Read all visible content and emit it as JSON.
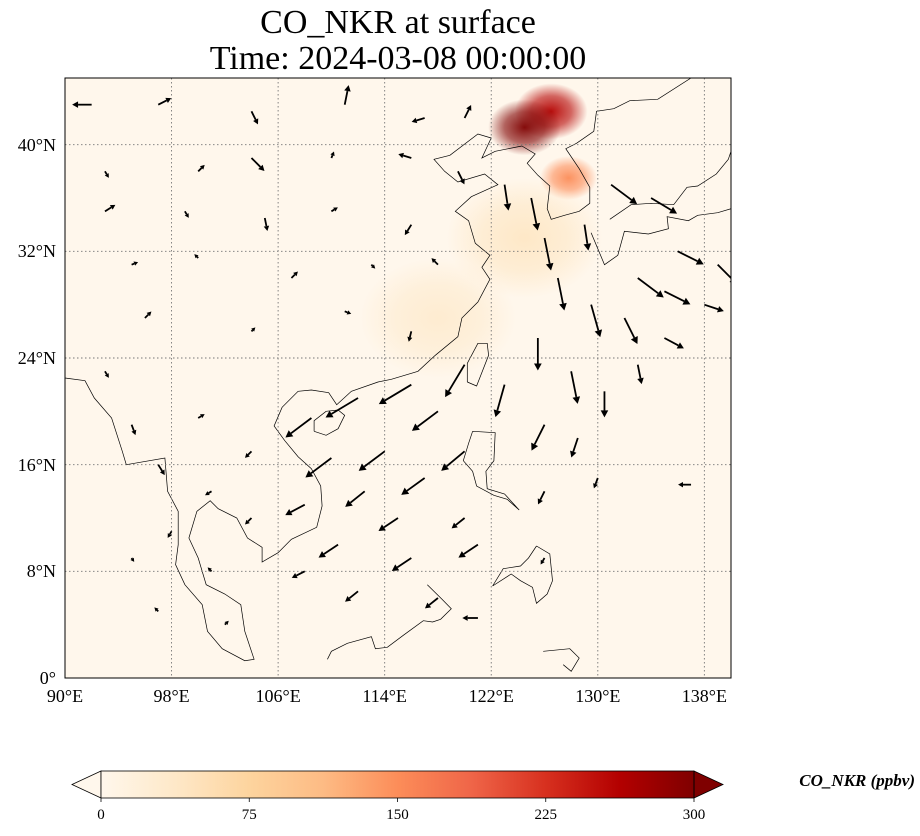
{
  "title": {
    "line1": "CO_NKR at surface",
    "line2": "Time: 2024-03-08 00:00:00"
  },
  "map": {
    "projection": "PlateCarree",
    "lon_range": [
      90,
      140
    ],
    "lat_range": [
      0,
      45
    ],
    "gridlines": "dotted",
    "lon_ticks": [
      {
        "value": 90,
        "label": "90°E"
      },
      {
        "value": 98,
        "label": "98°E"
      },
      {
        "value": 106,
        "label": "106°E"
      },
      {
        "value": 114,
        "label": "114°E"
      },
      {
        "value": 122,
        "label": "122°E"
      },
      {
        "value": 130,
        "label": "130°E"
      },
      {
        "value": 138,
        "label": "138°E"
      }
    ],
    "lat_ticks": [
      {
        "value": 0,
        "label": "0°"
      },
      {
        "value": 8,
        "label": "8°N"
      },
      {
        "value": 16,
        "label": "16°N"
      },
      {
        "value": 24,
        "label": "24°N"
      },
      {
        "value": 32,
        "label": "32°N"
      },
      {
        "value": 40,
        "label": "40°N"
      }
    ],
    "field_highlights": [
      {
        "name": "northeast-china-plume",
        "lon": 126.5,
        "lat": 42.5,
        "level": 260
      },
      {
        "name": "liaoning-core",
        "lon": 124.5,
        "lat": 41.3,
        "level": 300
      },
      {
        "name": "korea-plume",
        "lon": 127.8,
        "lat": 37.5,
        "level": 150
      },
      {
        "name": "yellow-sea-haze",
        "lon": 124.5,
        "lat": 33,
        "level": 40
      },
      {
        "name": "east-china-haze",
        "lon": 118,
        "lat": 27,
        "level": 30
      }
    ],
    "wind_vectors": [
      {
        "lon": 92,
        "lat": 43,
        "u": -1.5,
        "v": 0
      },
      {
        "lon": 97,
        "lat": 43,
        "u": 1,
        "v": 0.5
      },
      {
        "lon": 104,
        "lat": 42.5,
        "u": 0.5,
        "v": -1
      },
      {
        "lon": 111,
        "lat": 43,
        "u": 0.3,
        "v": 1.5
      },
      {
        "lon": 117,
        "lat": 42,
        "u": -1,
        "v": -0.3
      },
      {
        "lon": 120,
        "lat": 42,
        "u": 0.5,
        "v": 1
      },
      {
        "lon": 93,
        "lat": 38,
        "u": 0.3,
        "v": -0.5
      },
      {
        "lon": 100,
        "lat": 38,
        "u": 0.5,
        "v": 0.5
      },
      {
        "lon": 104,
        "lat": 39,
        "u": 1,
        "v": -1
      },
      {
        "lon": 110,
        "lat": 39,
        "u": 0.2,
        "v": 0.5
      },
      {
        "lon": 116,
        "lat": 39,
        "u": -1,
        "v": 0.3
      },
      {
        "lon": 119.5,
        "lat": 38,
        "u": 0.5,
        "v": -1
      },
      {
        "lon": 93,
        "lat": 35,
        "u": 0.8,
        "v": 0.5
      },
      {
        "lon": 99,
        "lat": 35,
        "u": 0.3,
        "v": -0.5
      },
      {
        "lon": 105,
        "lat": 34.5,
        "u": 0.2,
        "v": -1
      },
      {
        "lon": 110,
        "lat": 35,
        "u": 0.5,
        "v": 0.3
      },
      {
        "lon": 116,
        "lat": 34,
        "u": -0.5,
        "v": -0.8
      },
      {
        "lon": 95,
        "lat": 31,
        "u": 0.5,
        "v": 0.2
      },
      {
        "lon": 100,
        "lat": 31.5,
        "u": -0.3,
        "v": 0.3
      },
      {
        "lon": 107,
        "lat": 30,
        "u": 0.5,
        "v": 0.5
      },
      {
        "lon": 113,
        "lat": 31,
        "u": 0.3,
        "v": -0.3
      },
      {
        "lon": 118,
        "lat": 31,
        "u": -0.5,
        "v": 0.5
      },
      {
        "lon": 96,
        "lat": 27,
        "u": 0.5,
        "v": 0.5
      },
      {
        "lon": 104,
        "lat": 26,
        "u": 0.3,
        "v": 0.3
      },
      {
        "lon": 111,
        "lat": 27.5,
        "u": 0.5,
        "v": -0.2
      },
      {
        "lon": 116,
        "lat": 26,
        "u": -0.2,
        "v": -0.8
      },
      {
        "lon": 123,
        "lat": 37,
        "u": 0.3,
        "v": -2
      },
      {
        "lon": 125,
        "lat": 36,
        "u": 0.5,
        "v": -2.5
      },
      {
        "lon": 126,
        "lat": 33,
        "u": 0.5,
        "v": -2.5
      },
      {
        "lon": 129,
        "lat": 34,
        "u": 0.3,
        "v": -2
      },
      {
        "lon": 131,
        "lat": 37,
        "u": 2,
        "v": -1.5
      },
      {
        "lon": 134,
        "lat": 36,
        "u": 2,
        "v": -1.2
      },
      {
        "lon": 136,
        "lat": 32,
        "u": 2,
        "v": -1
      },
      {
        "lon": 139,
        "lat": 31,
        "u": 1.5,
        "v": -1.5
      },
      {
        "lon": 133,
        "lat": 30,
        "u": 2,
        "v": -1.5
      },
      {
        "lon": 135,
        "lat": 29,
        "u": 2,
        "v": -1
      },
      {
        "lon": 138,
        "lat": 28,
        "u": 1.5,
        "v": -0.5
      },
      {
        "lon": 127,
        "lat": 30,
        "u": 0.5,
        "v": -2.5
      },
      {
        "lon": 129.5,
        "lat": 28,
        "u": 0.7,
        "v": -2.5
      },
      {
        "lon": 132,
        "lat": 27,
        "u": 1,
        "v": -2
      },
      {
        "lon": 135,
        "lat": 25.5,
        "u": 1.5,
        "v": -0.8
      },
      {
        "lon": 125.5,
        "lat": 25.5,
        "u": 0,
        "v": -2.5
      },
      {
        "lon": 128,
        "lat": 23,
        "u": 0.5,
        "v": -2.5
      },
      {
        "lon": 130.5,
        "lat": 21.5,
        "u": 0,
        "v": -2
      },
      {
        "lon": 133,
        "lat": 23.5,
        "u": 0.3,
        "v": -1.5
      },
      {
        "lon": 123,
        "lat": 22,
        "u": -0.7,
        "v": -2.5
      },
      {
        "lon": 126,
        "lat": 19,
        "u": -1,
        "v": -2
      },
      {
        "lon": 128.5,
        "lat": 18,
        "u": -0.5,
        "v": -1.5
      },
      {
        "lon": 120,
        "lat": 23.5,
        "u": -1.5,
        "v": -2.5
      },
      {
        "lon": 118,
        "lat": 20,
        "u": -2,
        "v": -1.5
      },
      {
        "lon": 116,
        "lat": 22,
        "u": -2.5,
        "v": -1.5
      },
      {
        "lon": 112,
        "lat": 21,
        "u": -2.5,
        "v": -1.5
      },
      {
        "lon": 108.5,
        "lat": 19.5,
        "u": -2,
        "v": -1.5
      },
      {
        "lon": 114,
        "lat": 17,
        "u": -2,
        "v": -1.5
      },
      {
        "lon": 110,
        "lat": 16.5,
        "u": -2,
        "v": -1.5
      },
      {
        "lon": 120,
        "lat": 17,
        "u": -1.8,
        "v": -1.5
      },
      {
        "lon": 117,
        "lat": 15,
        "u": -1.8,
        "v": -1.3
      },
      {
        "lon": 112.5,
        "lat": 14,
        "u": -1.5,
        "v": -1.2
      },
      {
        "lon": 108,
        "lat": 13,
        "u": -1.5,
        "v": -0.8
      },
      {
        "lon": 115,
        "lat": 12,
        "u": -1.5,
        "v": -1
      },
      {
        "lon": 120,
        "lat": 12,
        "u": -1,
        "v": -0.8
      },
      {
        "lon": 110.5,
        "lat": 10,
        "u": -1.5,
        "v": -1
      },
      {
        "lon": 116,
        "lat": 9,
        "u": -1.5,
        "v": -1
      },
      {
        "lon": 121,
        "lat": 10,
        "u": -1.5,
        "v": -1
      },
      {
        "lon": 112,
        "lat": 6.5,
        "u": -1,
        "v": -0.8
      },
      {
        "lon": 118,
        "lat": 6,
        "u": -1,
        "v": -0.8
      },
      {
        "lon": 108,
        "lat": 8,
        "u": -1,
        "v": -0.5
      },
      {
        "lon": 121,
        "lat": 4.5,
        "u": -1.2,
        "v": 0
      },
      {
        "lon": 126,
        "lat": 14,
        "u": -0.5,
        "v": -1
      },
      {
        "lon": 130,
        "lat": 15,
        "u": -0.3,
        "v": -0.8
      },
      {
        "lon": 126,
        "lat": 9,
        "u": -0.3,
        "v": -0.5
      },
      {
        "lon": 137,
        "lat": 14.5,
        "u": -1,
        "v": 0
      },
      {
        "lon": 93,
        "lat": 23,
        "u": 0.3,
        "v": -0.5
      },
      {
        "lon": 95,
        "lat": 19,
        "u": 0.3,
        "v": -0.8
      },
      {
        "lon": 97,
        "lat": 16,
        "u": 0.5,
        "v": -0.8
      },
      {
        "lon": 100,
        "lat": 19.5,
        "u": 0.5,
        "v": 0.3
      },
      {
        "lon": 104,
        "lat": 17,
        "u": -0.5,
        "v": -0.5
      },
      {
        "lon": 101,
        "lat": 14,
        "u": -0.5,
        "v": -0.3
      },
      {
        "lon": 104,
        "lat": 12,
        "u": -0.5,
        "v": -0.5
      },
      {
        "lon": 98,
        "lat": 11,
        "u": -0.3,
        "v": -0.5
      },
      {
        "lon": 101,
        "lat": 8,
        "u": -0.3,
        "v": 0.3
      },
      {
        "lon": 95,
        "lat": 9,
        "u": 0.2,
        "v": -0.3
      },
      {
        "lon": 97,
        "lat": 5,
        "u": -0.3,
        "v": 0.3
      },
      {
        "lon": 102,
        "lat": 4,
        "u": 0.3,
        "v": 0.3
      }
    ]
  },
  "colorbar": {
    "label": "CO_NKR (ppbv)",
    "min": 0,
    "max": 300,
    "extend": "both",
    "colormap": "OrRd",
    "stops": [
      "#fff7ec",
      "#fee8c8",
      "#fdd49e",
      "#fdbb84",
      "#fc8d59",
      "#ef6548",
      "#d7301f",
      "#b30000",
      "#7f0000"
    ],
    "ticks": [
      {
        "value": 0,
        "label": "0"
      },
      {
        "value": 75,
        "label": "75"
      },
      {
        "value": 150,
        "label": "150"
      },
      {
        "value": 225,
        "label": "225"
      },
      {
        "value": 300,
        "label": "300"
      }
    ]
  }
}
